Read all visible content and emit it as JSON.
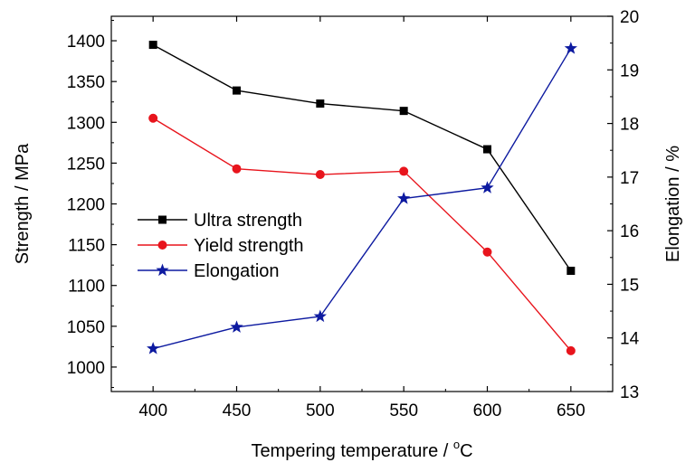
{
  "chart_data": {
    "type": "line",
    "x": [
      400,
      450,
      500,
      550,
      600,
      650
    ],
    "xlim": [
      375,
      675
    ],
    "xticks": [
      400,
      450,
      500,
      550,
      600,
      650
    ],
    "xlabel_main": "Tempering temperature / ",
    "xlabel_sup": "o",
    "xlabel_unit": "C",
    "ylabel_left": "Strength / MPa",
    "ylabel_right": "Elongation / %",
    "ylim_left": [
      970,
      1430
    ],
    "ylim_right": [
      13,
      20
    ],
    "yticks_left": [
      1000,
      1050,
      1100,
      1150,
      1200,
      1250,
      1300,
      1350,
      1400
    ],
    "yticks_right": [
      13,
      14,
      15,
      16,
      17,
      18,
      19,
      20
    ],
    "grid": false,
    "legend_position": "center-left",
    "series": [
      {
        "name": "Ultra strength",
        "axis": "left",
        "color": "#000000",
        "marker": "square",
        "values": [
          1395,
          1339,
          1323,
          1314,
          1267,
          1118
        ]
      },
      {
        "name": "Yield strength",
        "axis": "left",
        "color": "#e8141c",
        "marker": "circle",
        "values": [
          1305,
          1243,
          1236,
          1240,
          1141,
          1020
        ]
      },
      {
        "name": "Elongation",
        "axis": "right",
        "color": "#0d1aa0",
        "marker": "star",
        "values": [
          13.8,
          14.2,
          14.4,
          16.6,
          16.8,
          19.4
        ]
      }
    ]
  }
}
